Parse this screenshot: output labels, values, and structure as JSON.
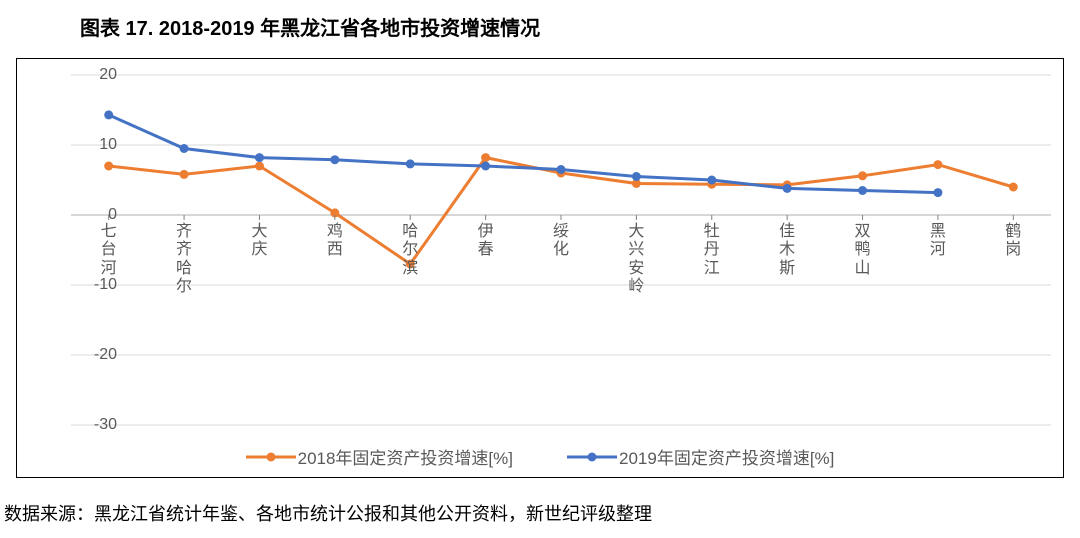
{
  "title": "图表 17. 2018-2019 年黑龙江省各地市投资增速情况",
  "source": "数据来源：黑龙江省统计年鉴、各地市统计公报和其他公开资料，新世纪评级整理",
  "chart": {
    "type": "line",
    "categories": [
      "七台河",
      "齐齐哈尔",
      "大庆",
      "鸡西",
      "哈尔滨",
      "伊春",
      "绥化",
      "大兴安岭",
      "牡丹江",
      "佳木斯",
      "双鸭山",
      "黑河",
      "鹤岗"
    ],
    "ylim": [
      -30,
      20
    ],
    "yticks": [
      -30,
      -20,
      -10,
      0,
      10,
      20
    ],
    "grid_color": "#d9d9d9",
    "axis_color": "#bfbfbf",
    "tick_mark_color": "#808080",
    "label_color": "#595959",
    "label_fontsize": 16,
    "background_color": "#ffffff",
    "line_width": 3,
    "marker_size": 4.5,
    "series": [
      {
        "name": "2018年固定资产投资增速[%]",
        "color": "#ed7d31",
        "marker": "circle",
        "values": [
          7.0,
          5.8,
          7.0,
          0.3,
          -7.0,
          8.2,
          6.0,
          4.5,
          4.4,
          4.3,
          5.6,
          7.2,
          4.0
        ]
      },
      {
        "name": "2019年固定资产投资增速[%]",
        "color": "#4472c4",
        "marker": "circle",
        "values": [
          14.3,
          9.5,
          8.2,
          7.9,
          7.3,
          7.0,
          6.5,
          5.5,
          5.0,
          3.8,
          3.5,
          3.2,
          null
        ]
      }
    ]
  }
}
